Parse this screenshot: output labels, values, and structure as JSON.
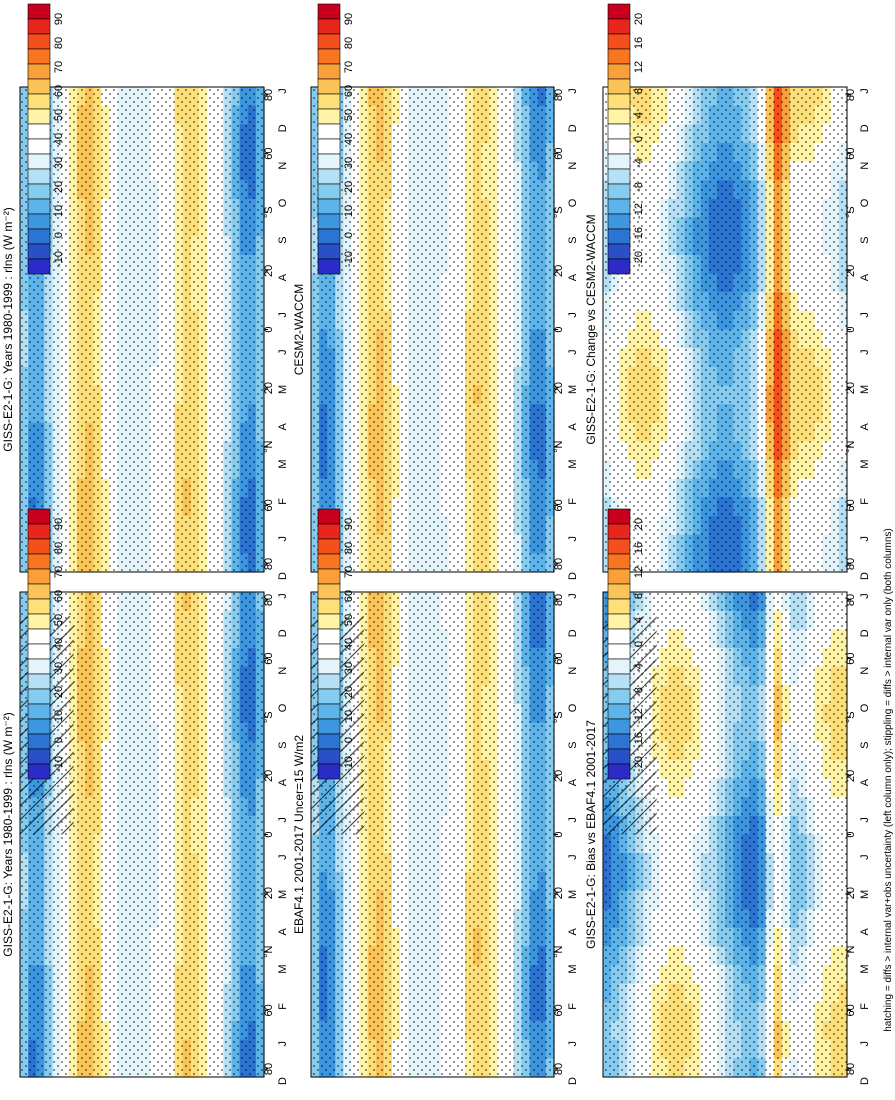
{
  "footnote": "hatching = diffs > internal var+obs uncertainty (left column only); stippling = diffs > internal var only (both columns)",
  "colorbars": {
    "abs": {
      "labels": [
        "90",
        "80",
        "70",
        "60",
        "50",
        "40",
        "30",
        "20",
        "10",
        "0",
        "-10"
      ],
      "colors": [
        "#c8001e",
        "#e8261c",
        "#f4501e",
        "#f7761f",
        "#f9a03a",
        "#fbc457",
        "#fde07a",
        "#fff3a6",
        "#ffffff",
        "#ffffff",
        "#e4f4fb",
        "#b5e0f5",
        "#86ccf0",
        "#5cb4ea",
        "#3c97e0",
        "#2b74d4",
        "#2a50c8",
        "#2b2cc8"
      ]
    },
    "diff": {
      "labels": [
        "20",
        "16",
        "12",
        "8",
        "4",
        "0",
        "-4",
        "-8",
        "-12",
        "-16",
        "-20"
      ],
      "colors": [
        "#c8001e",
        "#e8261c",
        "#f4501e",
        "#f7761f",
        "#f9a03a",
        "#fbc457",
        "#fde07a",
        "#fff3a6",
        "#ffffff",
        "#ffffff",
        "#e4f4fb",
        "#b5e0f5",
        "#86ccf0",
        "#5cb4ea",
        "#3c97e0",
        "#2b74d4",
        "#2a50c8",
        "#2b2cc8"
      ]
    }
  },
  "axis": {
    "months": [
      "D",
      "J",
      "F",
      "M",
      "A",
      "M",
      "J",
      "J",
      "A",
      "S",
      "O",
      "N",
      "D",
      "J"
    ],
    "lat_labels": [
      "80",
      "60",
      "°N",
      "20",
      "0",
      "20",
      "°S",
      "60",
      "80"
    ]
  },
  "panels": [
    {
      "id": "p1",
      "title": "GISS-E2-1-G: Years 1980-1999 : rlns (W m⁻²)",
      "kind": "abs",
      "hatch": true
    },
    {
      "id": "p2",
      "title": "GISS-E2-1-G: Years 1980-1999 : rlns (W m⁻²)",
      "kind": "abs",
      "hatch": false
    },
    {
      "id": "p3",
      "title": "EBAF4.1 2001-2017 Uncer=15 W/m2",
      "kind": "abs",
      "hatch": true
    },
    {
      "id": "p4",
      "title": "CESM2-WACCM",
      "kind": "abs",
      "hatch": false
    },
    {
      "id": "p5",
      "title": "GISS-E2-1-G: Bias vs EBAF4.1 2001-2017",
      "kind": "diff",
      "hatch": true
    },
    {
      "id": "p6",
      "title": "GISS-E2-1-G: Change vs CESM2-WACCM",
      "kind": "diff",
      "hatch": false
    }
  ],
  "chart_data": [
    {
      "type": "heatmap",
      "title": "GISS-E2-1-G: Years 1980-1999 : rlns (W m⁻²)",
      "x": [
        "D",
        "J",
        "F",
        "M",
        "A",
        "M",
        "J",
        "J",
        "A",
        "S",
        "O",
        "N",
        "D",
        "J"
      ],
      "y": [
        "80",
        "60",
        "°N",
        "20",
        "0",
        "20",
        "°S",
        "60",
        "80"
      ],
      "colorbar": [
        90,
        80,
        70,
        60,
        50,
        40,
        30,
        20,
        10,
        0,
        -10
      ]
    },
    {
      "type": "heatmap",
      "title": "GISS-E2-1-G: Years 1980-1999 : rlns (W m⁻²)",
      "x": [
        "D",
        "J",
        "F",
        "M",
        "A",
        "M",
        "J",
        "J",
        "A",
        "S",
        "O",
        "N",
        "D",
        "J"
      ],
      "y": [
        "80",
        "60",
        "°N",
        "20",
        "0",
        "20",
        "°S",
        "60",
        "80"
      ],
      "colorbar": [
        90,
        80,
        70,
        60,
        50,
        40,
        30,
        20,
        10,
        0,
        -10
      ]
    },
    {
      "type": "heatmap",
      "title": "EBAF4.1 2001-2017 Uncer=15 W/m2",
      "x": [
        "D",
        "J",
        "F",
        "M",
        "A",
        "M",
        "J",
        "J",
        "A",
        "S",
        "O",
        "N",
        "D",
        "J"
      ],
      "y": [
        "80",
        "60",
        "°N",
        "20",
        "0",
        "20",
        "°S",
        "60",
        "80"
      ],
      "colorbar": [
        90,
        80,
        70,
        60,
        50,
        40,
        30,
        20,
        10,
        0,
        -10
      ]
    },
    {
      "type": "heatmap",
      "title": "CESM2-WACCM",
      "x": [
        "D",
        "J",
        "F",
        "M",
        "A",
        "M",
        "J",
        "J",
        "A",
        "S",
        "O",
        "N",
        "D",
        "J"
      ],
      "y": [
        "80",
        "60",
        "°N",
        "20",
        "0",
        "20",
        "°S",
        "60",
        "80"
      ],
      "colorbar": [
        90,
        80,
        70,
        60,
        50,
        40,
        30,
        20,
        10,
        0,
        -10
      ]
    },
    {
      "type": "heatmap",
      "title": "GISS-E2-1-G: Bias vs EBAF4.1 2001-2017",
      "x": [
        "D",
        "J",
        "F",
        "M",
        "A",
        "M",
        "J",
        "J",
        "A",
        "S",
        "O",
        "N",
        "D",
        "J"
      ],
      "y": [
        "80",
        "60",
        "°N",
        "20",
        "0",
        "20",
        "°S",
        "60",
        "80"
      ],
      "colorbar": [
        20,
        16,
        12,
        8,
        4,
        0,
        -4,
        -8,
        -12,
        -16,
        -20
      ]
    },
    {
      "type": "heatmap",
      "title": "GISS-E2-1-G: Change vs CESM2-WACCM",
      "x": [
        "D",
        "J",
        "F",
        "M",
        "A",
        "M",
        "J",
        "J",
        "A",
        "S",
        "O",
        "N",
        "D",
        "J"
      ],
      "y": [
        "80",
        "60",
        "°N",
        "20",
        "0",
        "20",
        "°S",
        "60",
        "80"
      ],
      "colorbar": [
        20,
        16,
        12,
        8,
        4,
        0,
        -4,
        -8,
        -12,
        -16,
        -20
      ]
    }
  ]
}
